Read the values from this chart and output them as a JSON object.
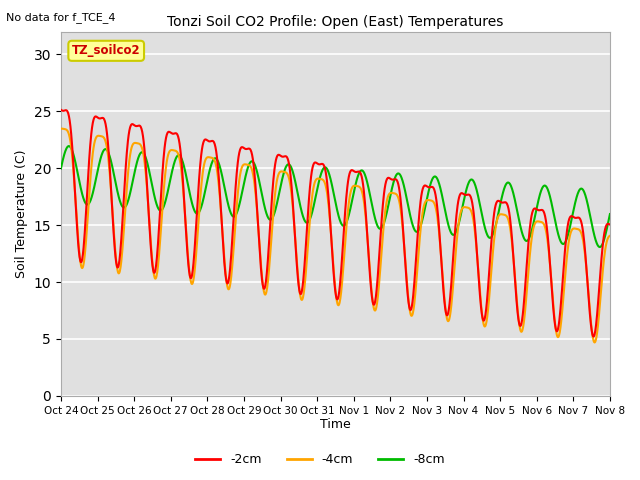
{
  "title": "Tonzi Soil CO2 Profile: Open (East) Temperatures",
  "no_data_label": "No data for f_TCE_4",
  "ylabel": "Soil Temperature (C)",
  "xlabel": "Time",
  "ylim": [
    0,
    32
  ],
  "yticks": [
    0,
    5,
    10,
    15,
    20,
    25,
    30
  ],
  "x_tick_labels": [
    "Oct 24",
    "Oct 25",
    "Oct 26",
    "Oct 27",
    "Oct 28",
    "Oct 29",
    "Oct 30",
    "Oct 31",
    "Nov 1",
    "Nov 2",
    "Nov 3",
    "Nov 4",
    "Nov 5",
    "Nov 6",
    "Nov 7",
    "Nov 8"
  ],
  "series_labels": [
    "-2cm",
    "-4cm",
    "-8cm"
  ],
  "series_colors": [
    "#ff0000",
    "#ffa500",
    "#00bb00"
  ],
  "legend_box_color": "#ffff99",
  "legend_box_edge": "#cccc00",
  "legend_label": "TZ_soilco2",
  "background_color": "#e0e0e0",
  "grid_color": "#ffffff",
  "days": 15,
  "figsize": [
    6.4,
    4.8
  ],
  "dpi": 100
}
